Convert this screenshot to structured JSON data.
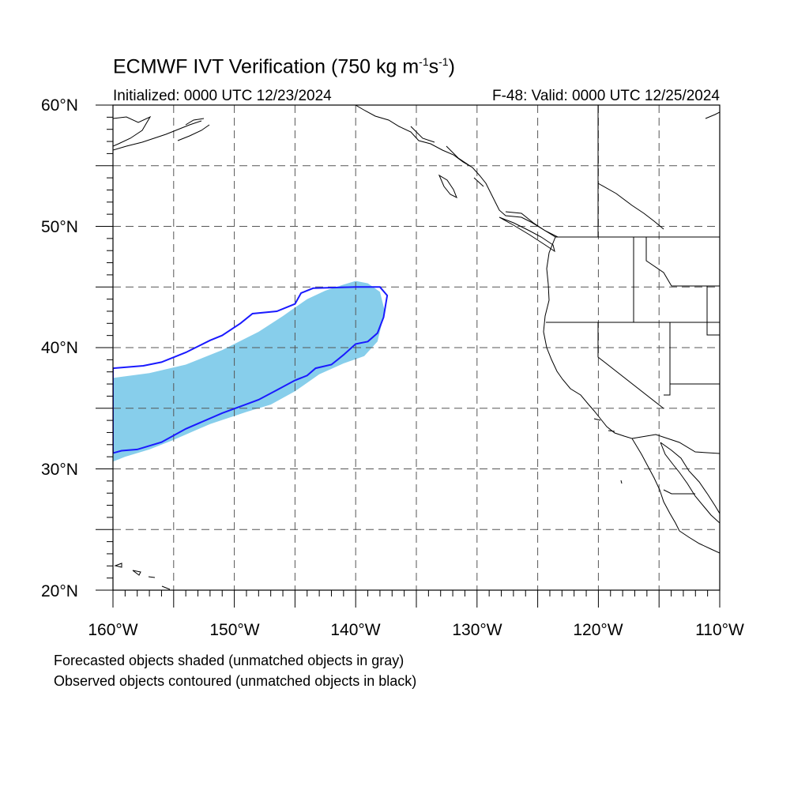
{
  "header": {
    "title_main": "ECMWF IVT Verification (750 kg m",
    "title_sup1": "-1",
    "title_mid": "s",
    "title_sup2": "-1",
    "title_end": ")",
    "initialized": "Initialized: 0000 UTC 12/23/2024",
    "valid": "F-48: Valid: 0000 UTC 12/25/2024"
  },
  "axes": {
    "lat_labels": [
      "60°N",
      "50°N",
      "40°N",
      "30°N",
      "20°N"
    ],
    "lon_labels": [
      "160°W",
      "150°W",
      "140°W",
      "130°W",
      "120°W",
      "110°W"
    ]
  },
  "legend": {
    "line1": "Forecasted objects shaded (unmatched objects in gray)",
    "line2": "Observed objects contoured (unmatched objects in black)"
  },
  "colors": {
    "forecast_fill": "#87CEEB",
    "observed_contour": "#1a1aff",
    "coast": "#000000",
    "grid": "#555555"
  },
  "chart_data": {
    "type": "map",
    "projection": "cylindrical-equidistant",
    "lon_range": [
      -160,
      -110
    ],
    "lat_range": [
      20,
      60
    ],
    "gridlines": "dashed every 5 degrees",
    "objects": [
      {
        "name": "forecast",
        "style": "shaded",
        "polygon": [
          [
            -160,
            37.5
          ],
          [
            -157,
            37.9
          ],
          [
            -154,
            38.6
          ],
          [
            -151,
            39.8
          ],
          [
            -148,
            41.3
          ],
          [
            -146,
            42.6
          ],
          [
            -145,
            43.3
          ],
          [
            -144,
            44
          ],
          [
            -142.5,
            44.7
          ],
          [
            -141,
            45.2
          ],
          [
            -140,
            45.5
          ],
          [
            -139,
            45.3
          ],
          [
            -138,
            44.6
          ],
          [
            -137.6,
            43
          ],
          [
            -138.2,
            40.5
          ],
          [
            -139.3,
            39.3
          ],
          [
            -141,
            38.7
          ],
          [
            -143,
            37.8
          ],
          [
            -145,
            36.4
          ],
          [
            -147,
            35.3
          ],
          [
            -149,
            34.7
          ],
          [
            -152,
            33.7
          ],
          [
            -155,
            32.4
          ],
          [
            -157,
            31.6
          ],
          [
            -159,
            31
          ],
          [
            -160,
            30.6
          ]
        ]
      },
      {
        "name": "observed",
        "style": "contour",
        "polygon": [
          [
            -160,
            38.3
          ],
          [
            -157.5,
            38.5
          ],
          [
            -156,
            38.8
          ],
          [
            -154,
            39.6
          ],
          [
            -152,
            40.6
          ],
          [
            -151,
            41
          ],
          [
            -149.5,
            42
          ],
          [
            -148.5,
            42.8
          ],
          [
            -146.5,
            43
          ],
          [
            -145,
            43.6
          ],
          [
            -144.5,
            44.5
          ],
          [
            -143.5,
            44.9
          ],
          [
            -140,
            45
          ],
          [
            -138,
            45
          ],
          [
            -137.4,
            44.3
          ],
          [
            -137.7,
            42.5
          ],
          [
            -138.2,
            41.2
          ],
          [
            -139,
            40.5
          ],
          [
            -140,
            40.3
          ],
          [
            -141,
            39.4
          ],
          [
            -141.5,
            39
          ],
          [
            -142,
            38.6
          ],
          [
            -143.3,
            38.3
          ],
          [
            -144,
            37.7
          ],
          [
            -145,
            37.3
          ],
          [
            -146.5,
            36.5
          ],
          [
            -148,
            35.7
          ],
          [
            -151,
            34.6
          ],
          [
            -154,
            33.3
          ],
          [
            -156,
            32.2
          ],
          [
            -158,
            31.6
          ],
          [
            -159.3,
            31.5
          ],
          [
            -160,
            31.3
          ]
        ]
      }
    ]
  }
}
